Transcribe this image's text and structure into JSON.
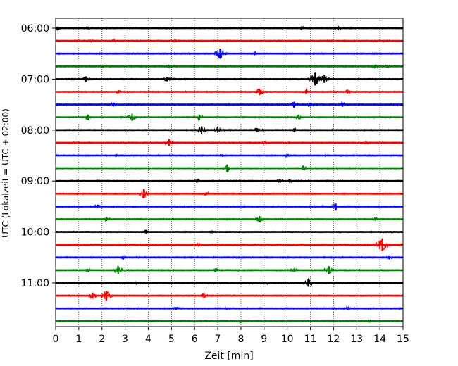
{
  "chart_data": {
    "type": "line",
    "title": "",
    "xlabel": "Zeit  [min]",
    "ylabel": "UTC (Lokalzeit = UTC + 02:00)",
    "xlim": [
      0,
      15
    ],
    "x_ticks": [
      0,
      1,
      2,
      3,
      4,
      5,
      6,
      7,
      8,
      9,
      10,
      11,
      12,
      13,
      14,
      15
    ],
    "x_tick_labels": [
      "0",
      "1",
      "2",
      "3",
      "4",
      "5",
      "6",
      "7",
      "8",
      "9",
      "10",
      "11",
      "12",
      "13",
      "14",
      "15"
    ],
    "y_tick_labels": [
      "06:00",
      "07:00",
      "08:00",
      "09:00",
      "10:00",
      "11:00"
    ],
    "y_tick_row_index": [
      0,
      4,
      8,
      12,
      16,
      20
    ],
    "grid": "vertical dotted at each minute",
    "trace_colors": [
      "#000000",
      "#ff0000",
      "#0000ff",
      "#008000"
    ],
    "trace_interval_min": 15,
    "traces": [
      {
        "start": "06:00",
        "events": [
          [
            0.1,
            0.25
          ],
          [
            1.4,
            0.2
          ],
          [
            10.6,
            0.25
          ],
          [
            12.2,
            0.35
          ]
        ]
      },
      {
        "start": "06:15",
        "events": [
          [
            1.5,
            0.2
          ],
          [
            2.5,
            0.2
          ],
          [
            5.2,
            0.2
          ]
        ]
      },
      {
        "start": "06:30",
        "events": [
          [
            7.1,
            0.8
          ],
          [
            8.6,
            0.2
          ]
        ]
      },
      {
        "start": "06:45",
        "events": [
          [
            2.0,
            0.2
          ],
          [
            4.9,
            0.2
          ],
          [
            13.8,
            0.25
          ],
          [
            14.3,
            0.2
          ]
        ]
      },
      {
        "start": "07:00",
        "events": [
          [
            1.3,
            0.45
          ],
          [
            4.8,
            0.35
          ],
          [
            11.2,
            1.0
          ],
          [
            11.6,
            0.6
          ]
        ]
      },
      {
        "start": "07:15",
        "events": [
          [
            2.7,
            0.25
          ],
          [
            8.8,
            0.5
          ],
          [
            10.8,
            0.3
          ],
          [
            12.6,
            0.25
          ]
        ]
      },
      {
        "start": "07:30",
        "events": [
          [
            2.5,
            0.3
          ],
          [
            10.3,
            0.45
          ],
          [
            11.0,
            0.3
          ],
          [
            12.4,
            0.3
          ]
        ]
      },
      {
        "start": "07:45",
        "events": [
          [
            1.4,
            0.45
          ],
          [
            3.3,
            0.6
          ],
          [
            6.2,
            0.45
          ],
          [
            10.5,
            0.3
          ]
        ]
      },
      {
        "start": "08:00",
        "events": [
          [
            6.3,
            0.6
          ],
          [
            7.0,
            0.4
          ],
          [
            8.7,
            0.3
          ],
          [
            10.3,
            0.25
          ]
        ]
      },
      {
        "start": "08:15",
        "events": [
          [
            4.9,
            0.55
          ],
          [
            9.0,
            0.2
          ],
          [
            13.4,
            0.2
          ]
        ]
      },
      {
        "start": "08:30",
        "events": [
          [
            2.6,
            0.2
          ],
          [
            7.2,
            0.2
          ],
          [
            10.0,
            0.2
          ]
        ]
      },
      {
        "start": "08:45",
        "events": [
          [
            7.4,
            0.6
          ],
          [
            10.7,
            0.3
          ]
        ]
      },
      {
        "start": "09:00",
        "events": [
          [
            6.1,
            0.3
          ],
          [
            9.7,
            0.25
          ],
          [
            10.1,
            0.25
          ]
        ]
      },
      {
        "start": "09:15",
        "events": [
          [
            3.8,
            0.75
          ],
          [
            6.5,
            0.25
          ]
        ]
      },
      {
        "start": "09:30",
        "events": [
          [
            1.8,
            0.3
          ],
          [
            12.1,
            0.45
          ]
        ]
      },
      {
        "start": "09:45",
        "events": [
          [
            2.2,
            0.3
          ],
          [
            8.8,
            0.5
          ],
          [
            13.8,
            0.25
          ]
        ]
      },
      {
        "start": "10:00",
        "events": [
          [
            3.9,
            0.25
          ],
          [
            6.7,
            0.2
          ]
        ]
      },
      {
        "start": "10:15",
        "events": [
          [
            14.1,
            1.0
          ],
          [
            6.2,
            0.2
          ]
        ]
      },
      {
        "start": "10:30",
        "events": [
          [
            2.9,
            0.2
          ],
          [
            14.4,
            0.2
          ]
        ]
      },
      {
        "start": "10:45",
        "events": [
          [
            2.7,
            0.65
          ],
          [
            11.8,
            0.65
          ],
          [
            6.9,
            0.3
          ],
          [
            10.3,
            0.3
          ],
          [
            1.4,
            0.2
          ]
        ]
      },
      {
        "start": "11:00",
        "events": [
          [
            10.9,
            0.6
          ],
          [
            3.5,
            0.2
          ],
          [
            9.1,
            0.2
          ]
        ]
      },
      {
        "start": "11:15",
        "events": [
          [
            1.6,
            0.5
          ],
          [
            2.2,
            0.75
          ],
          [
            6.4,
            0.45
          ]
        ]
      },
      {
        "start": "11:30",
        "events": [
          [
            5.2,
            0.2
          ],
          [
            12.6,
            0.2
          ]
        ]
      },
      {
        "start": "11:45",
        "events": [
          [
            8.0,
            0.2
          ],
          [
            13.5,
            0.2
          ]
        ]
      }
    ]
  }
}
